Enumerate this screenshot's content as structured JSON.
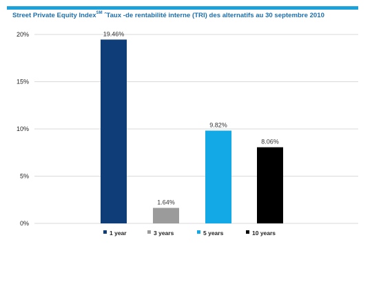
{
  "header": {
    "title_main": "Street Private Equity Index",
    "title_sup": "SM",
    "title_rest": " ˆTaux -de rentabilité interne (TRI) des alternatifs au 30 septembre 2010"
  },
  "colors": {
    "rule": "#1da1db",
    "title": "#1c6fae",
    "grid": "#d9d9d9"
  },
  "chart_data": {
    "type": "bar",
    "title": "Street Private Equity Index SM ˆTaux -de rentabilité interne (TRI) des alternatifs au 30 septembre 2010",
    "categories": [
      "1 year",
      "3 years",
      "5 years",
      "10 years"
    ],
    "values": [
      19.46,
      1.64,
      9.82,
      8.06
    ],
    "data_labels": [
      "19.46%",
      "1.64%",
      "9.82%",
      "8.06%"
    ],
    "colors": [
      "#0f3d78",
      "#9b9b9b",
      "#12a9e6",
      "#000000"
    ],
    "yticks": [
      "0%",
      "5%",
      "10%",
      "15%",
      "20%"
    ],
    "ytick_values": [
      0,
      5,
      10,
      15,
      20
    ],
    "ylim": [
      0,
      20
    ],
    "grid": true,
    "legend_position": "bottom"
  }
}
